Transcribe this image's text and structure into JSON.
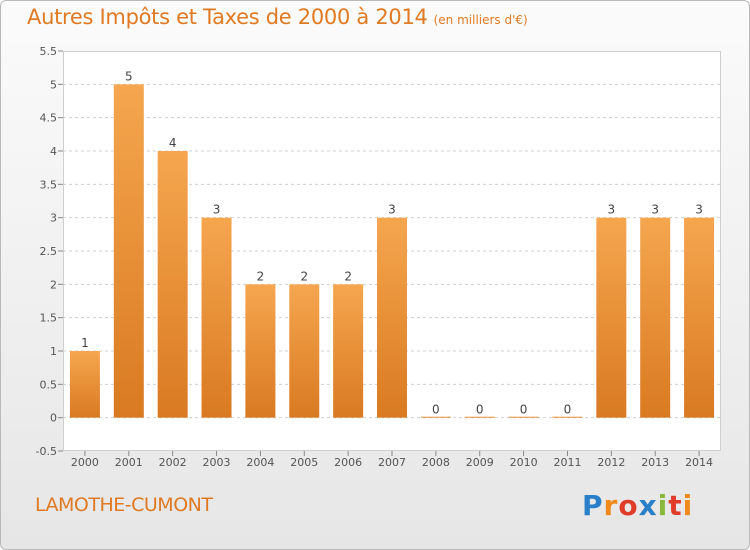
{
  "title": {
    "main": "Autres Impôts et Taxes de 2000 à 2014",
    "unit": "(en milliers d'€)"
  },
  "commune": "LAMOTHE-CUMONT",
  "logo": {
    "text": "Proxiti",
    "colors": [
      "#2a80c8",
      "#f08a1c",
      "#e03c2a",
      "#8ab83a"
    ]
  },
  "colors": {
    "bar_light": "#f5a64f",
    "bar_dark": "#d97a22",
    "title": "#e07a22"
  },
  "chart_data": {
    "type": "bar",
    "categories": [
      "2000",
      "2001",
      "2002",
      "2003",
      "2004",
      "2005",
      "2006",
      "2007",
      "2008",
      "2009",
      "2010",
      "2011",
      "2012",
      "2013",
      "2014"
    ],
    "values": [
      1,
      5,
      4,
      3,
      2,
      2,
      2,
      3,
      0,
      0,
      0,
      0,
      3,
      3,
      3
    ],
    "data_labels": [
      "1",
      "5",
      "4",
      "3",
      "2",
      "2",
      "2",
      "3",
      "0",
      "0",
      "0",
      "0",
      "3",
      "3",
      "3"
    ],
    "yticks": [
      "-0.5",
      "0",
      "0.5",
      "1",
      "1.5",
      "2",
      "2.5",
      "3",
      "3.5",
      "4",
      "4.5",
      "5",
      "5.5"
    ],
    "ylim": [
      -0.5,
      5.5
    ],
    "grid": "horizontal-dashed",
    "legend": "none"
  }
}
